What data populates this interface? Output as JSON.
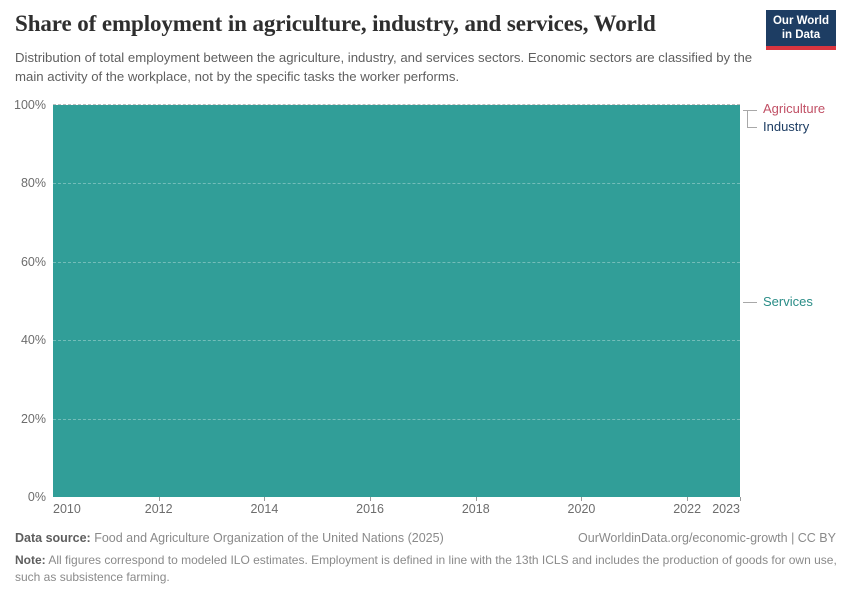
{
  "header": {
    "title": "Share of employment in agriculture, industry, and services, World",
    "subtitle": "Distribution of total employment between the agriculture, industry, and services sectors. Economic sectors are classified by the main activity of the workplace, not by the specific tasks the worker performs.",
    "logo": {
      "line1": "Our World",
      "line2": "in Data",
      "bg_color": "#1d3d63",
      "accent_color": "#d9353f"
    }
  },
  "chart_data": {
    "type": "area",
    "stacked": true,
    "title": "Share of employment in agriculture, industry, and services, World",
    "x_range": [
      2010,
      2023
    ],
    "x_ticks": [
      "2010",
      "2012",
      "2014",
      "2016",
      "2018",
      "2020",
      "2022",
      "2023"
    ],
    "y_ticks": [
      "0%",
      "20%",
      "40%",
      "60%",
      "80%",
      "100%"
    ],
    "ylim": [
      0,
      100
    ],
    "grid": true,
    "legend_position": "right-edge-labels",
    "fill_color": "#319E98",
    "gridline_color_over_fill": "rgba(255,255,255,0.32)",
    "top_gridline_color": "#bcbcbc",
    "axis_label_color": "#6d6d6d",
    "series": [
      {
        "name": "Agriculture",
        "color": "#C15065",
        "label_anchor_pct": 99
      },
      {
        "name": "Industry",
        "color": "#1D3D63",
        "label_anchor_pct": 94.4
      },
      {
        "name": "Services",
        "color": "#2A8D87",
        "label_anchor_pct": 49.7
      }
    ],
    "rendered_note": "Plot area renders as one continuous teal block spanning 0%-100% across 2010-2023; individual stacked band boundaries are not visually distinguishable."
  },
  "footer": {
    "source_label": "Data source:",
    "source_text": "Food and Agriculture Organization of the United Nations (2025)",
    "rights": "OurWorldinData.org/economic-growth | CC BY",
    "note_label": "Note:",
    "note_text": "All figures correspond to modeled ILO estimates. Employment is defined in line with the 13th ICLS and includes the production of goods for own use, such as subsistence farming."
  }
}
